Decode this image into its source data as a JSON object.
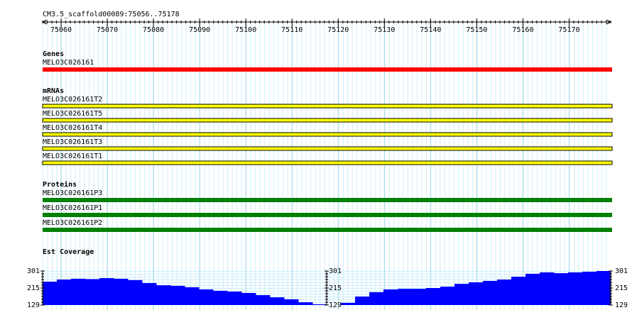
{
  "ruler": {
    "title": "CM3.5_scaffold00089:75056..75178",
    "xlim": [
      75056,
      75179
    ],
    "xticks": [
      75060,
      75070,
      75080,
      75090,
      75100,
      75110,
      75120,
      75130,
      75140,
      75150,
      75160,
      75170
    ]
  },
  "tracks": [
    {
      "title": "Genes",
      "color": "#ff0000",
      "features": [
        "MELO3C026161"
      ]
    },
    {
      "title": "mRNAs",
      "color": "#ffff00",
      "features": [
        "MELO3C026161T2",
        "MELO3C026161T5",
        "MELO3C026161T4",
        "MELO3C026161T3",
        "MELO3C026161T1"
      ]
    },
    {
      "title": "Proteins",
      "color": "#008000",
      "features": [
        "MELO3C026161P3",
        "MELO3C026161P1",
        "MELO3C026161P2"
      ]
    }
  ],
  "coverage": {
    "title": "Est Coverage",
    "color": "#0000ff",
    "ylim": [
      129,
      301
    ],
    "yticks": [
      129,
      215,
      301
    ],
    "values": [
      247,
      258,
      262,
      260,
      265,
      262,
      255,
      240,
      229,
      226,
      219,
      208,
      201,
      197,
      190,
      179,
      168,
      158,
      143,
      133,
      129,
      140,
      172,
      194,
      208,
      211,
      211,
      215,
      222,
      236,
      244,
      251,
      258,
      272,
      287,
      294,
      290,
      294,
      297,
      301
    ]
  }
}
